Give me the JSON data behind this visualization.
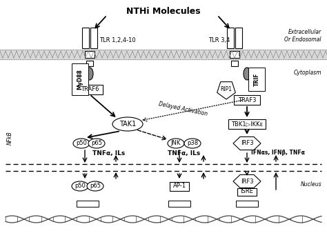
{
  "title": "NTHi Molecules",
  "bg_color": "#ffffff",
  "label_extracellular": "Extracellular\nOr Endosomal",
  "label_cytoplasm": "Cytoplasm",
  "label_nucleus": "Nucleus",
  "label_nfkb": "NFkB",
  "tlr_left": "TLR 1,2,4-10",
  "tlr_right": "TLR 3,4",
  "myd88": "MyD88",
  "trif": "TRIF",
  "traf6": "TRAF6",
  "rip1": "RIP1",
  "traf3": "TRAF3",
  "tak1": "TAK1",
  "tbk1": "TBK1▷IKKε",
  "p50p65_top": [
    "p50",
    "p65"
  ],
  "jnk_p38": [
    "JNK",
    "p38"
  ],
  "irf3": "IRF3",
  "tnfa_ils_left": "TNFα, ILs",
  "tnfa_ils_mid": "TNFα, ILs",
  "ifns_right": "IFNαs, IFNβ, TNFα",
  "ap1": "AP-1",
  "p50p65_bot": [
    "p50",
    "p65"
  ],
  "irf3_isre": [
    "IRF3",
    "ISRE"
  ],
  "delayed_activation": "Delayed Activation"
}
